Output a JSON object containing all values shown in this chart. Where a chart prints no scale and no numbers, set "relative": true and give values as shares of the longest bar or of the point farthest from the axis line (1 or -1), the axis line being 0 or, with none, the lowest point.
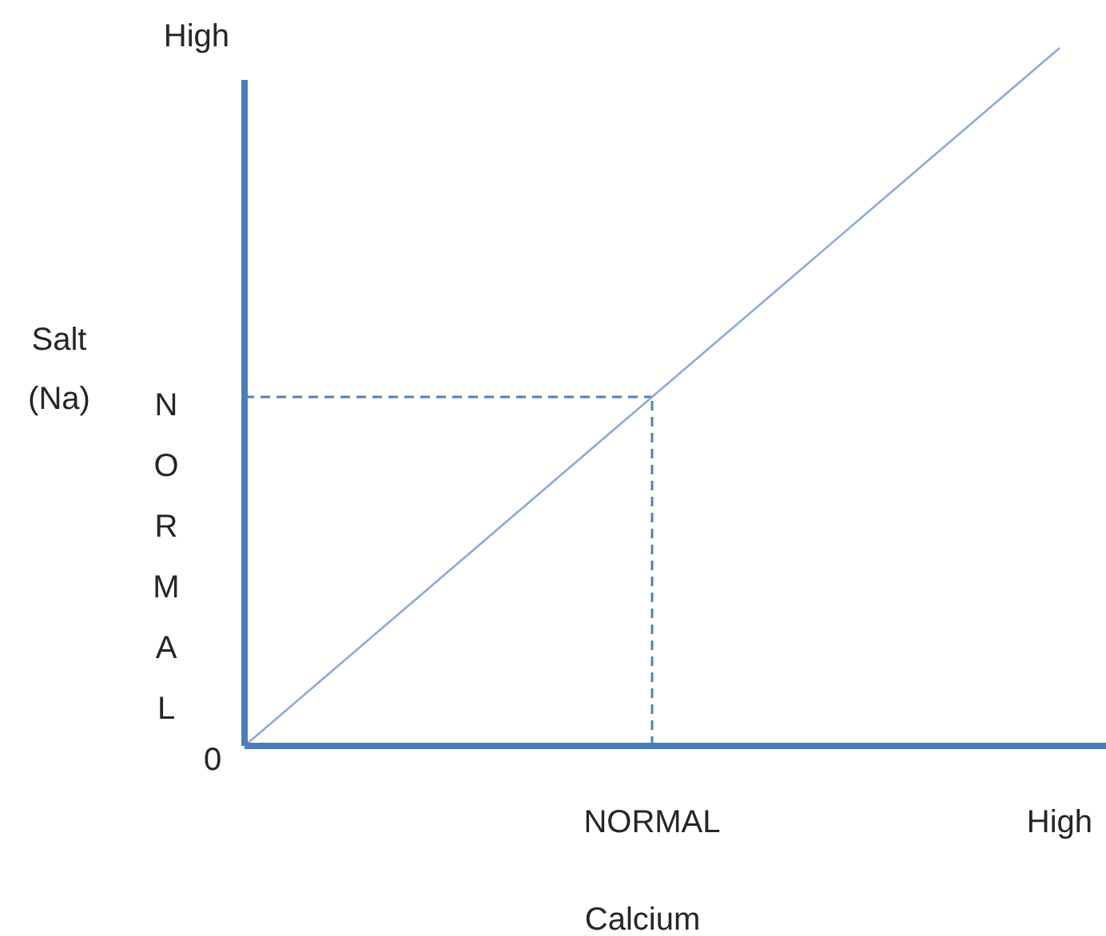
{
  "chart_data": {
    "type": "line",
    "xlabel": "Calcium",
    "ylabel": "Salt\n(Na)",
    "relative": true,
    "categories": [
      null,
      "NORMAL",
      "High"
    ],
    "annotations": [
      "High",
      "NORMAL",
      "0"
    ],
    "marker": "none",
    "series": [
      {
        "values": [
          0,
          0.5,
          1
        ],
        "color": "#8eaadb",
        "line_style": "solid"
      }
    ],
    "ref_lines": [
      {
        "axis": "y",
        "value": 0.5,
        "color": "#4f81bd",
        "line_style": "dashed"
      },
      {
        "axis": "x",
        "value": "NORMAL",
        "color": "#4f81bd",
        "line_style": "dashed"
      }
    ]
  }
}
